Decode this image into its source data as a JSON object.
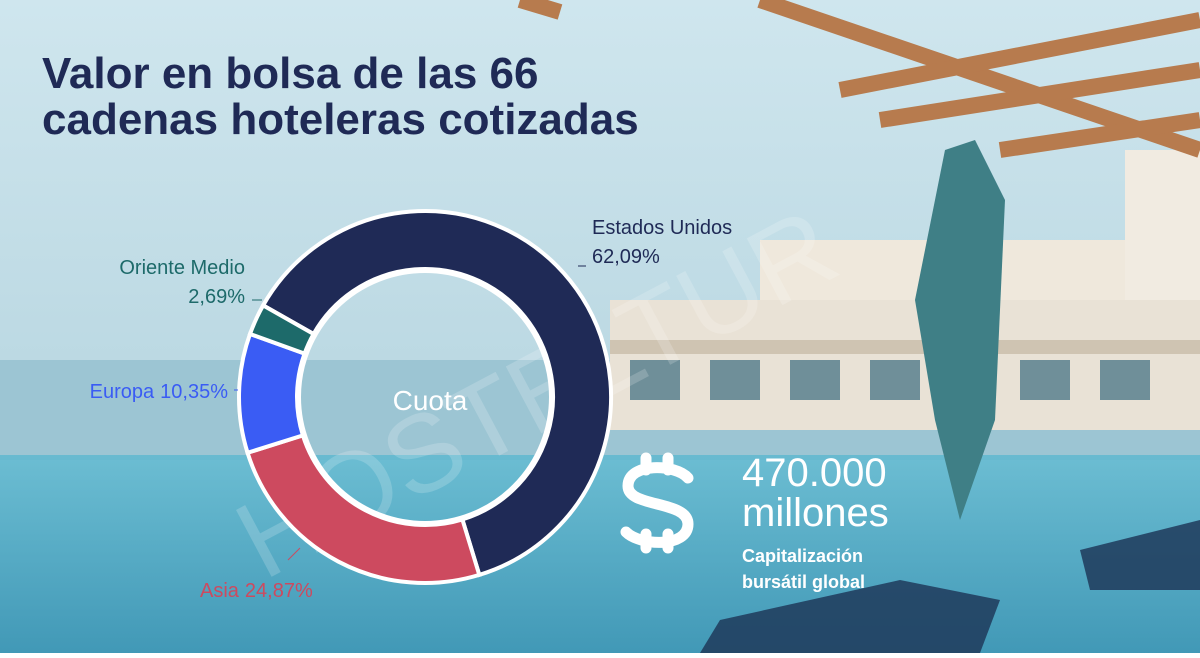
{
  "chart_data": {
    "type": "donut",
    "title": "Valor en bolsa de las 66 cadenas hoteleras cotizadas",
    "center_label": "Cuota",
    "categories": [
      "Estados Unidos",
      "Asia",
      "Europa",
      "Oriente Medio"
    ],
    "values": [
      62.09,
      24.87,
      10.35,
      2.69
    ],
    "value_labels": [
      "62,09%",
      "24,87%",
      "10,35%",
      "2,69%"
    ],
    "colors": [
      "#1f2a56",
      "#cd4a5f",
      "#3a5cf4",
      "#1d6a6a"
    ],
    "highlight": {
      "value": "470.000",
      "unit": "millones",
      "caption_lines": [
        "Capitalización",
        "bursátil global"
      ]
    },
    "watermark": "HOSTELTUR"
  }
}
